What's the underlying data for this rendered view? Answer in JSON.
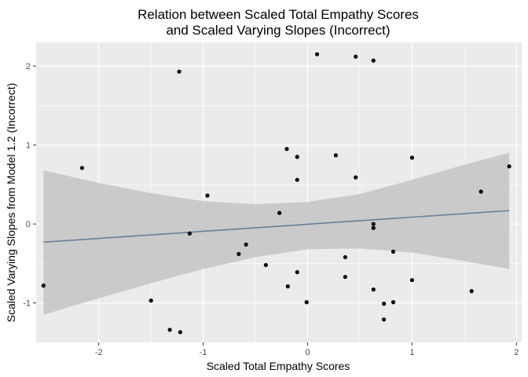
{
  "chart_data": {
    "type": "scatter",
    "title_line1": "Relation between Scaled Total Empathy Scores",
    "title_line2": "and Scaled Varying Slopes (Incorrect)",
    "xlabel": "Scaled Total Empathy Scores",
    "ylabel": "Scaled Varying Slopes from Model 1.2 (Incorrect)",
    "xlim": [
      -2.6,
      2.05
    ],
    "ylim": [
      -1.5,
      2.3
    ],
    "x_ticks": [
      -2,
      -1,
      0,
      1,
      2
    ],
    "y_ticks": [
      -1,
      0,
      1,
      2
    ],
    "grid": true,
    "colors": {
      "panel_background": "#ebebeb",
      "grid_major": "#ffffff",
      "points": "#000000",
      "ribbon": "#c4c4c4",
      "fit_line": "#6b7f94"
    },
    "points": [
      {
        "x": -2.53,
        "y": -0.78
      },
      {
        "x": -2.16,
        "y": 0.71
      },
      {
        "x": -1.5,
        "y": -0.97
      },
      {
        "x": -1.32,
        "y": -1.34
      },
      {
        "x": -1.23,
        "y": 1.93
      },
      {
        "x": -1.22,
        "y": -1.37
      },
      {
        "x": -1.13,
        "y": -0.12
      },
      {
        "x": -0.96,
        "y": 0.36
      },
      {
        "x": -0.66,
        "y": -0.38
      },
      {
        "x": -0.59,
        "y": -0.26
      },
      {
        "x": -0.4,
        "y": -0.52
      },
      {
        "x": -0.27,
        "y": 0.14
      },
      {
        "x": -0.2,
        "y": 0.95
      },
      {
        "x": -0.19,
        "y": -0.79
      },
      {
        "x": -0.1,
        "y": 0.85
      },
      {
        "x": -0.1,
        "y": 0.56
      },
      {
        "x": -0.1,
        "y": -0.61
      },
      {
        "x": -0.01,
        "y": -0.99
      },
      {
        "x": 0.09,
        "y": 2.15
      },
      {
        "x": 0.27,
        "y": 0.87
      },
      {
        "x": 0.36,
        "y": -0.42
      },
      {
        "x": 0.36,
        "y": -0.67
      },
      {
        "x": 0.46,
        "y": 2.12
      },
      {
        "x": 0.46,
        "y": 0.59
      },
      {
        "x": 0.63,
        "y": 2.07
      },
      {
        "x": 0.63,
        "y": 0.0
      },
      {
        "x": 0.63,
        "y": -0.05
      },
      {
        "x": 0.63,
        "y": -0.83
      },
      {
        "x": 0.73,
        "y": -1.01
      },
      {
        "x": 0.73,
        "y": -1.21
      },
      {
        "x": 0.82,
        "y": -0.35
      },
      {
        "x": 0.82,
        "y": -0.99
      },
      {
        "x": 1.0,
        "y": 0.84
      },
      {
        "x": 1.0,
        "y": -0.71
      },
      {
        "x": 1.57,
        "y": -0.85
      },
      {
        "x": 1.66,
        "y": 0.41
      },
      {
        "x": 1.93,
        "y": 0.73
      }
    ],
    "fit_line": {
      "x": [
        -2.53,
        1.93
      ],
      "y": [
        -0.23,
        0.17
      ]
    },
    "confidence_band": {
      "x": [
        -2.53,
        -2.0,
        -1.5,
        -1.0,
        -0.5,
        0.0,
        0.5,
        1.0,
        1.5,
        1.93
      ],
      "upper": [
        0.68,
        0.52,
        0.39,
        0.29,
        0.25,
        0.28,
        0.38,
        0.56,
        0.75,
        0.9
      ],
      "lower": [
        -1.15,
        -0.94,
        -0.75,
        -0.57,
        -0.42,
        -0.32,
        -0.31,
        -0.36,
        -0.47,
        -0.57
      ]
    }
  }
}
